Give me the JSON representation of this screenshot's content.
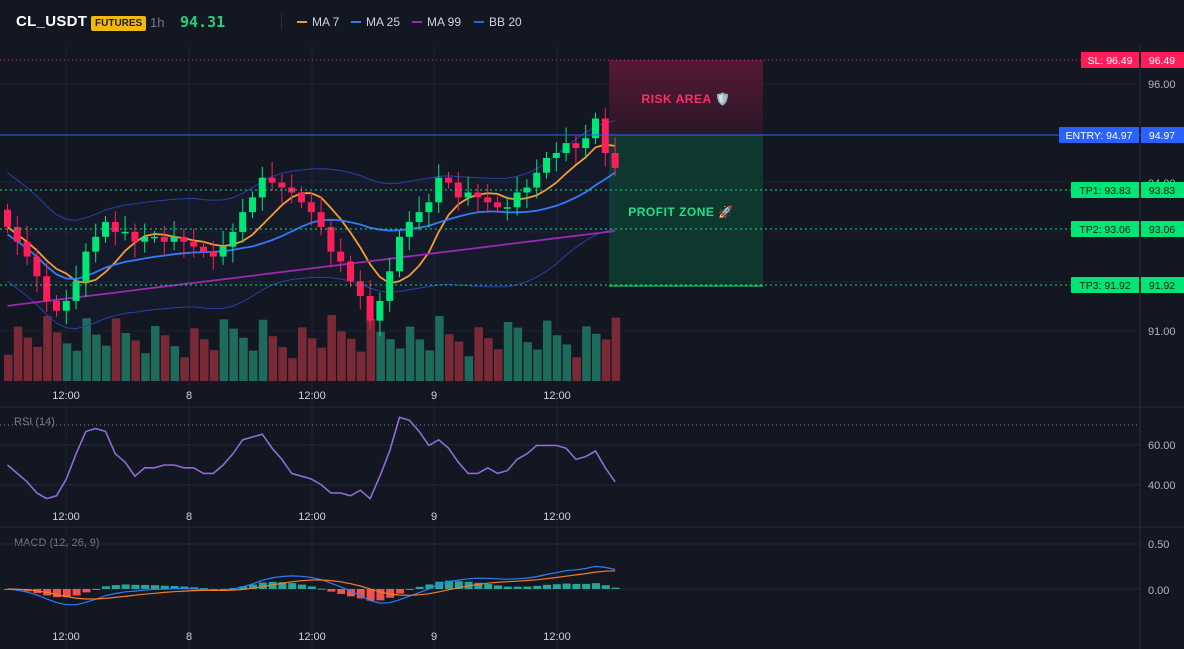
{
  "header": {
    "symbol": "CL_USDT",
    "badge": "FUTURES",
    "timeframe": "1h",
    "last_price": "94.31",
    "indicators": [
      {
        "label": "MA 7",
        "color": "#f59c34"
      },
      {
        "label": "MA 25",
        "color": "#2f7cf6"
      },
      {
        "label": "MA 99",
        "color": "#9c27b0"
      },
      {
        "label": "BB 20",
        "color": "#2962ff"
      }
    ]
  },
  "price_axis": {
    "ticks": [
      "96.00",
      "94.00",
      "91.00"
    ]
  },
  "levels": {
    "sl": {
      "label": "SL: 96.49",
      "value": "96.49",
      "color": "#ff1e5a"
    },
    "entry": {
      "label": "ENTRY: 94.97",
      "value": "94.97",
      "color": "#2962ff"
    },
    "tp1": {
      "label": "TP1: 93.83",
      "value": "93.83",
      "color": "#00e676"
    },
    "tp2": {
      "label": "TP2: 93.06",
      "value": "93.06",
      "color": "#00e676"
    },
    "tp3": {
      "label": "TP3: 91.92",
      "value": "91.92",
      "color": "#00e676"
    }
  },
  "zones": {
    "risk": "RISK AREA 🛡️",
    "profit": "PROFIT ZONE 🚀"
  },
  "time_axis": [
    "12:00",
    "8",
    "12:00",
    "9",
    "12:00"
  ],
  "rsi": {
    "label": "RSI (14)",
    "ticks": [
      "60.00",
      "40.00"
    ]
  },
  "macd": {
    "label": "MACD (12, 26, 9)",
    "ticks": [
      "0.50",
      "0.00"
    ]
  },
  "chart_data": {
    "type": "candlestick",
    "series_colors": {
      "up": "#26a69a",
      "up_candle": "#00e676",
      "down": "#ff1e5a"
    },
    "close": [
      93.1,
      92.8,
      92.5,
      92.1,
      91.6,
      91.4,
      91.6,
      92.0,
      92.6,
      92.9,
      93.2,
      93.0,
      93.0,
      92.8,
      92.9,
      92.9,
      92.8,
      92.9,
      92.8,
      92.7,
      92.6,
      92.5,
      92.7,
      93.0,
      93.4,
      93.7,
      94.1,
      94.0,
      93.9,
      93.8,
      93.6,
      93.4,
      93.1,
      92.6,
      92.4,
      92.0,
      91.7,
      91.2,
      91.6,
      92.2,
      92.9,
      93.2,
      93.4,
      93.6,
      94.1,
      94.0,
      93.7,
      93.8,
      93.7,
      93.6,
      93.5,
      93.5,
      93.8,
      93.9,
      94.2,
      94.5,
      94.6,
      94.8,
      94.7,
      94.9,
      95.3,
      94.6,
      94.3
    ]
  }
}
